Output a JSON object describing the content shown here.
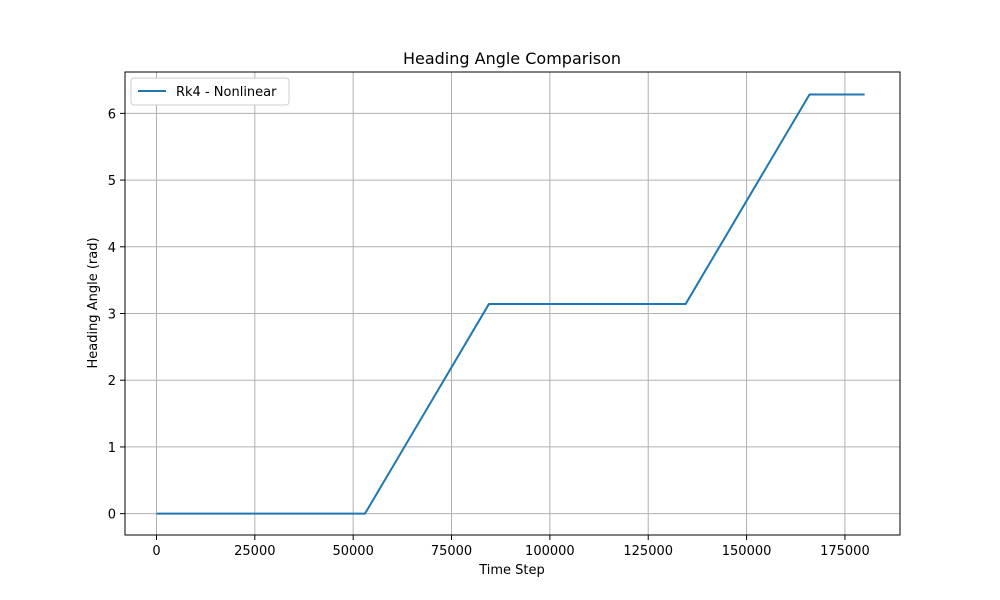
{
  "chart_data": {
    "type": "line",
    "title": "Heading Angle Comparison",
    "xlabel": "Time Step",
    "ylabel": "Heading Angle (rad)",
    "xlim": [
      -8000,
      189000
    ],
    "ylim": [
      -0.32,
      6.62
    ],
    "xticks": [
      0,
      25000,
      50000,
      75000,
      100000,
      125000,
      150000,
      175000
    ],
    "yticks": [
      0,
      1,
      2,
      3,
      4,
      5,
      6
    ],
    "grid": true,
    "legend_position": "top-left",
    "series": [
      {
        "name": "Rk4 - Nonlinear",
        "color": "#1f77b4",
        "x": [
          0,
          53000,
          84500,
          134500,
          166000,
          180000
        ],
        "y": [
          0,
          0,
          3.1416,
          3.1416,
          6.2832,
          6.2832
        ]
      }
    ]
  }
}
